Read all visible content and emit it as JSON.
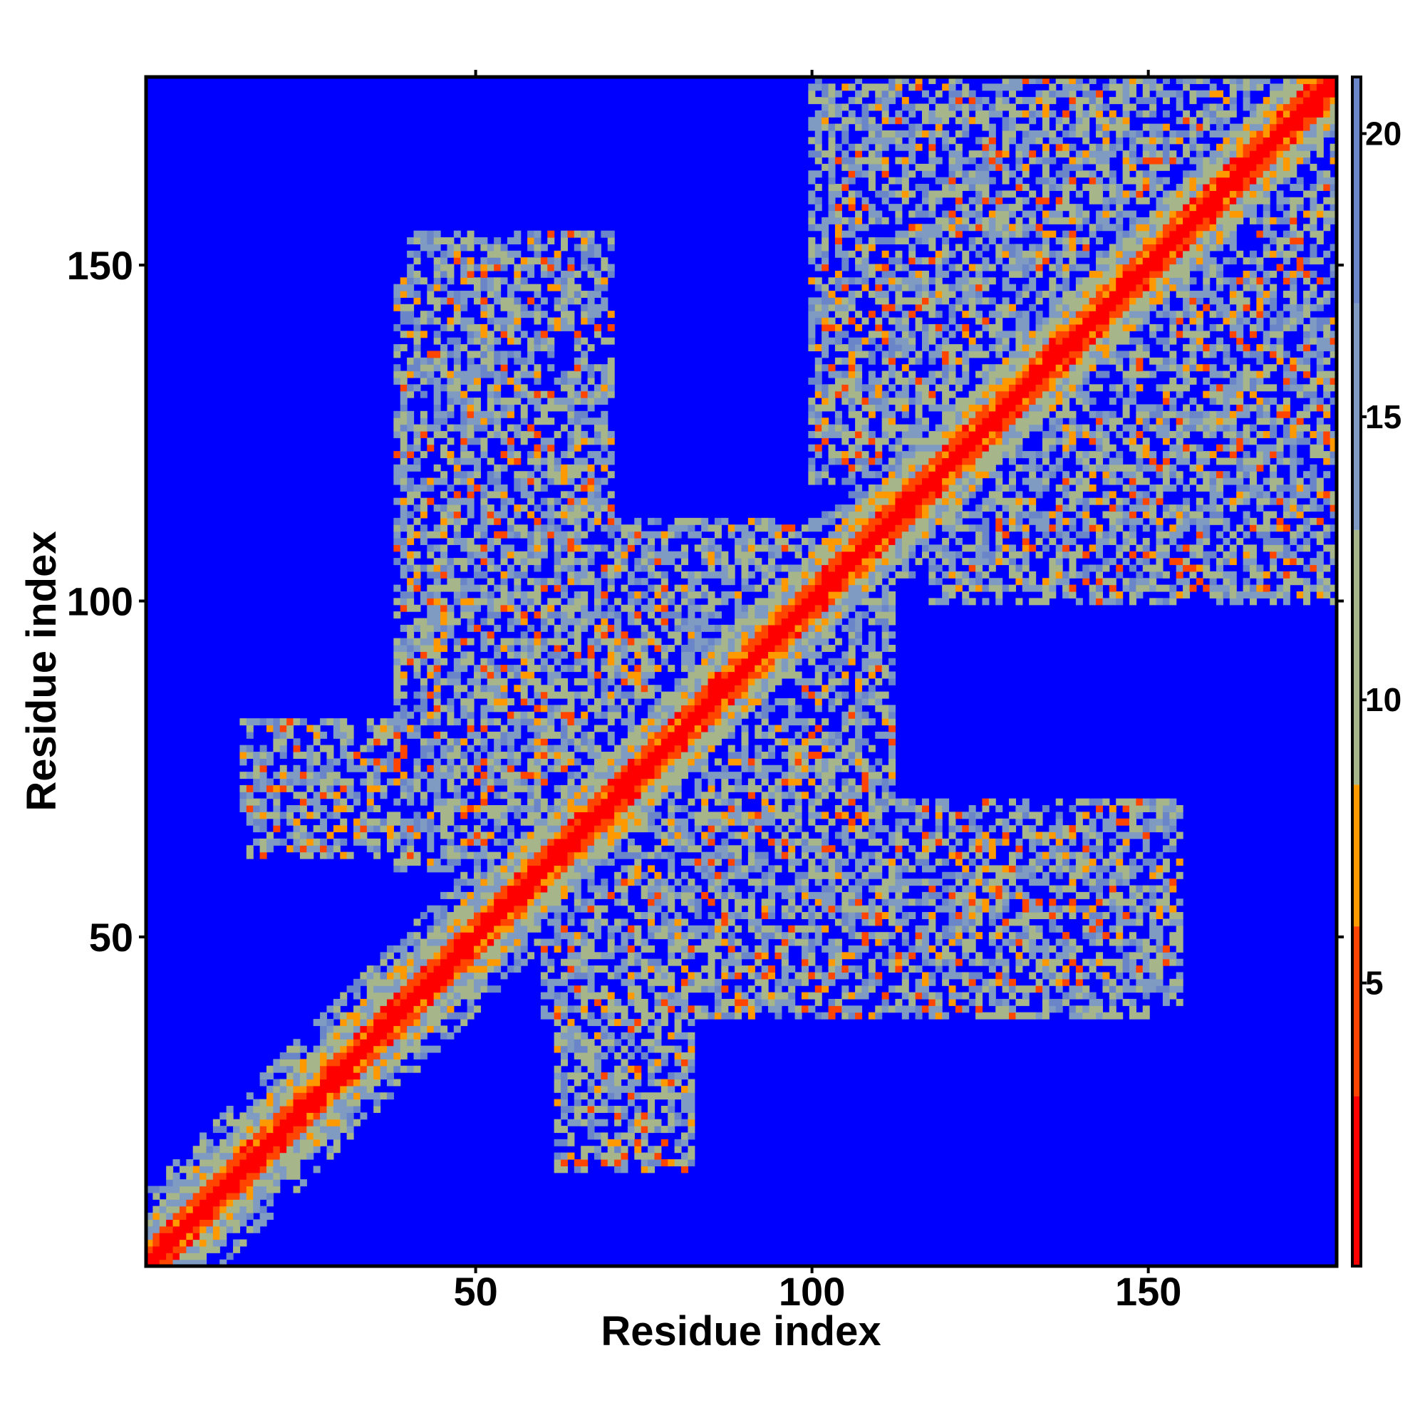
{
  "chart_data": {
    "type": "heatmap",
    "title": "",
    "xlabel": "Residue index",
    "ylabel": "Residue index",
    "xlim": [
      1,
      178
    ],
    "ylim": [
      1,
      178
    ],
    "x_ticks": [
      50,
      100,
      150
    ],
    "y_ticks": [
      50,
      100,
      150
    ],
    "colorbar": {
      "range": [
        0,
        21
      ],
      "ticks": [
        5,
        10,
        15,
        20
      ],
      "colors": [
        "#ff0000",
        "#ff4500",
        "#ff9900",
        "#a7b58a",
        "#7f9bc2",
        "#6a86c8",
        "#0000ff"
      ],
      "thresholds": [
        3,
        6,
        8.5,
        13,
        17,
        21
      ]
    },
    "matrix_description": {
      "n_residues": 178,
      "diagonal_value": 0,
      "background_value": 21,
      "contact_blocks": [
        {
          "x": [
            120,
            178
          ],
          "y": [
            120,
            178
          ]
        },
        {
          "x": [
            100,
            178
          ],
          "y": [
            118,
            178
          ]
        },
        {
          "x": [
            40,
            70
          ],
          "y": [
            90,
            155
          ]
        },
        {
          "x": [
            62,
            112
          ],
          "y": [
            78,
            112
          ]
        },
        {
          "x": [
            60,
            150
          ],
          "y": [
            38,
            70
          ]
        },
        {
          "x": [
            65,
            80
          ],
          "y": [
            20,
            45
          ]
        },
        {
          "x": [
            15,
            50
          ],
          "y": [
            62,
            82
          ]
        }
      ]
    }
  }
}
